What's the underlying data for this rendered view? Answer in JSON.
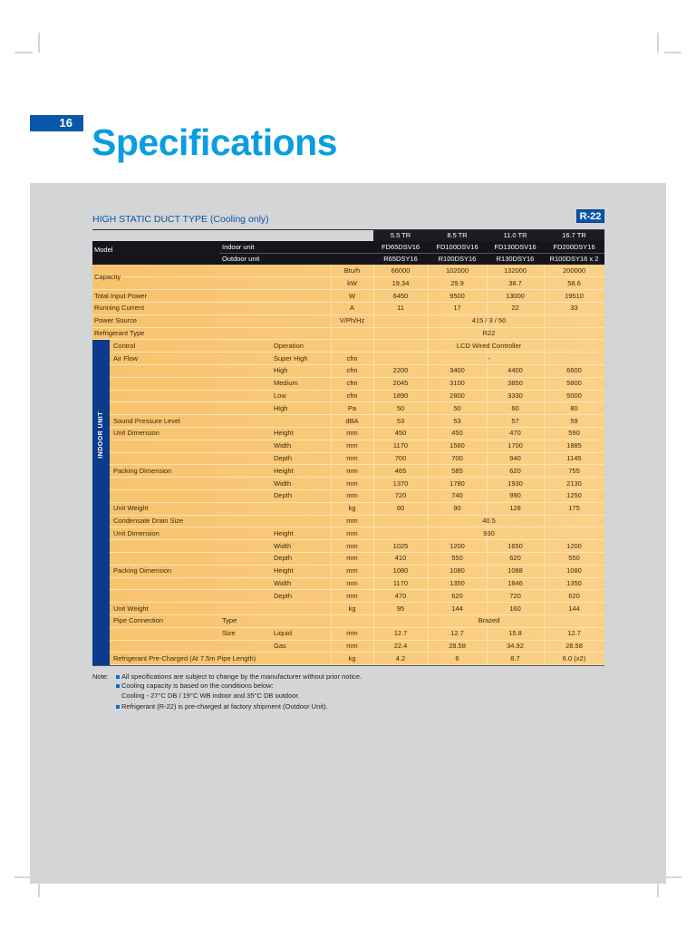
{
  "page_number": "16",
  "title": "Specifications",
  "subtitle": "HIGH STATIC DUCT TYPE (Cooling only)",
  "badge": "R-22",
  "table": {
    "header": {
      "model_label": "Model",
      "indoor_label": "Indoor unit",
      "outdoor_label": "Outdoor unit",
      "capacities": [
        "5.5 TR",
        "8.5 TR",
        "11.0 TR",
        "16.7 TR"
      ],
      "indoor_models": [
        "FD65DSV16",
        "FD100DSV16",
        "FD130DSV16",
        "FD200DSY16"
      ],
      "outdoor_models": [
        "R65DSY16",
        "R100DSY16",
        "R130DSY16",
        "R100DSY16 x 2"
      ]
    },
    "side_label": "INDOOR UNIT",
    "rows": [
      {
        "label": "Capacity",
        "unit": "Btu/h",
        "values": [
          "66000",
          "102000",
          "132000",
          "200000"
        ]
      },
      {
        "unit": "kW",
        "values": [
          "19.34",
          "29.9",
          "38.7",
          "58.6"
        ]
      },
      {
        "label": "Total Input Power",
        "unit": "W",
        "values": [
          "6450",
          "9500",
          "13000",
          "19510"
        ]
      },
      {
        "label": "Running Current",
        "unit": "A",
        "values": [
          "11",
          "17",
          "22",
          "33"
        ]
      },
      {
        "label": "Power Source",
        "unit": "V/Ph/Hz",
        "merged": "415 / 3 / 50"
      },
      {
        "label": "Refrigerant Type",
        "merged": "R22"
      },
      {
        "label": "Control",
        "sub": "Operation",
        "merged": "LCD Wired Controller"
      },
      {
        "label": "Air Flow",
        "sub": "Super High",
        "unit": "cfm",
        "merged": "-"
      },
      {
        "sub": "High",
        "unit": "cfm",
        "values": [
          "2200",
          "3400",
          "4400",
          "6600"
        ]
      },
      {
        "sub": "Medium",
        "unit": "cfm",
        "values": [
          "2045",
          "3100",
          "3850",
          "5800"
        ]
      },
      {
        "sub": "Low",
        "unit": "cfm",
        "values": [
          "1890",
          "2800",
          "3330",
          "5000"
        ]
      },
      {
        "sub": "High",
        "unit": "Pa",
        "values": [
          "50",
          "50",
          "60",
          "80"
        ]
      },
      {
        "label": "Sound Pressure Level",
        "unit": "dBA",
        "values": [
          "53",
          "53",
          "57",
          "59"
        ]
      },
      {
        "label": "Unit Dimension",
        "sub": "Height",
        "unit": "mm",
        "values": [
          "450",
          "450",
          "470",
          "590"
        ]
      },
      {
        "sub": "Width",
        "unit": "mm",
        "values": [
          "1170",
          "1560",
          "1700",
          "1885"
        ]
      },
      {
        "sub": "Depth",
        "unit": "mm",
        "values": [
          "700",
          "700",
          "940",
          "1145"
        ]
      },
      {
        "label": "Packing Dimension",
        "sub": "Height",
        "unit": "mm",
        "values": [
          "465",
          "585",
          "620",
          "755"
        ]
      },
      {
        "sub": "Width",
        "unit": "mm",
        "values": [
          "1370",
          "1780",
          "1930",
          "2130"
        ]
      },
      {
        "sub": "Depth",
        "unit": "mm",
        "values": [
          "720",
          "740",
          "990",
          "1250"
        ]
      },
      {
        "label": "Unit Weight",
        "unit": "kg",
        "values": [
          "60",
          "90",
          "128",
          "175"
        ]
      },
      {
        "label": "Condensate Drain Size",
        "unit": "mm",
        "merged": "40.5"
      },
      {
        "label": "Unit Dimension",
        "sub": "Height",
        "unit": "mm",
        "merged": "930"
      },
      {
        "sub": "Width",
        "unit": "mm",
        "values": [
          "1025",
          "1200",
          "1650",
          "1200"
        ]
      },
      {
        "sub": "Depth",
        "unit": "mm",
        "values": [
          "410",
          "550",
          "620",
          "550"
        ]
      },
      {
        "label": "Packing Dimension",
        "sub": "Height",
        "unit": "mm",
        "values": [
          "1080",
          "1080",
          "1088",
          "1080"
        ]
      },
      {
        "sub": "Width",
        "unit": "mm",
        "values": [
          "1170",
          "1350",
          "1846",
          "1350"
        ]
      },
      {
        "sub": "Depth",
        "unit": "mm",
        "values": [
          "470",
          "620",
          "720",
          "620"
        ]
      },
      {
        "label": "Unit Weight",
        "unit": "kg",
        "values": [
          "95",
          "144",
          "160",
          "144"
        ]
      },
      {
        "label": "Pipe Connection",
        "group": "Type",
        "merged": "Brazed"
      },
      {
        "group": "Size",
        "sub": "Liquid",
        "unit": "mm",
        "values": [
          "12.7",
          "12.7",
          "15.8",
          "12.7"
        ]
      },
      {
        "sub": "Gas",
        "unit": "mm",
        "values": [
          "22.4",
          "28.58",
          "34.92",
          "28.58"
        ]
      },
      {
        "label": "Refrigerant Pre-Charged (At 7.5m Pipe Length)",
        "unit": "kg",
        "values": [
          "4.2",
          "6",
          "8.7",
          "6.0 (x2)"
        ]
      }
    ]
  },
  "notes": {
    "label": "Note:",
    "items": [
      {
        "text": "All specifications are subject to change by the manufacturer without prior notice."
      },
      {
        "text": "Cooling capacity is based on the conditions below:",
        "detail": "Cooling - 27°C DB / 19°C WB indoor and 35°C DB outdoor."
      },
      {
        "text": "Refrigerant (R-22) is pre-charged at factory shipment (Outdoor Unit)."
      }
    ]
  }
}
